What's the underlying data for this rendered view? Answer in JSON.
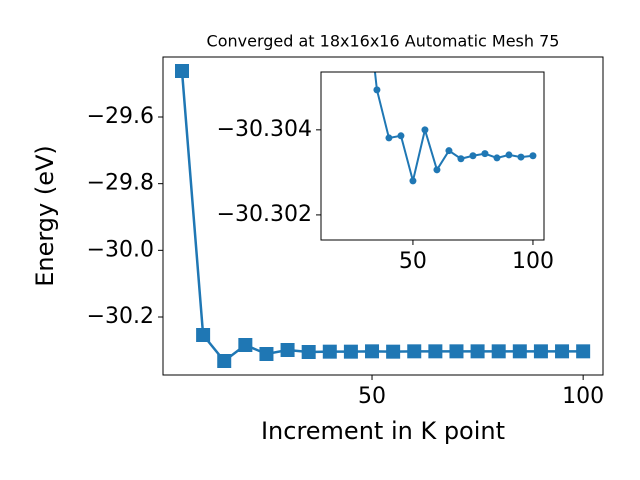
{
  "chart_data": [
    {
      "type": "line",
      "title": "Converged at 18x16x16 Automatic Mesh 75",
      "x_label": "Increment in K point",
      "y_label": "Energy (eV)",
      "x": [
        5,
        10,
        15,
        20,
        25,
        30,
        35,
        40,
        45,
        50,
        55,
        60,
        65,
        70,
        75,
        80,
        85,
        90,
        95,
        100
      ],
      "values": [
        -29.462,
        -30.254,
        -30.332,
        -30.284,
        -30.311,
        -30.299,
        -30.305,
        -30.304,
        -30.304,
        -30.303,
        -30.304,
        -30.303,
        -30.303,
        -30.303,
        -30.303,
        -30.303,
        -30.303,
        -30.303,
        -30.303,
        -30.303
      ],
      "color": "#1f77b4",
      "marker": "square",
      "xlim": [
        0.5,
        104.7
      ],
      "ylim": [
        -30.374,
        -29.42
      ],
      "xticks": [
        50,
        100
      ],
      "yticks": [
        {
          "value": -30.2,
          "label": "−30.2"
        },
        {
          "value": -30.0,
          "label": "−30.0"
        },
        {
          "value": -29.8,
          "label": "−29.8"
        },
        {
          "value": -29.6,
          "label": "−29.6"
        }
      ]
    },
    {
      "type": "line",
      "x": [
        30,
        35,
        40,
        45,
        50,
        55,
        60,
        65,
        70,
        75,
        80,
        85,
        90,
        95,
        100
      ],
      "values": [
        -30.3075,
        -30.30494,
        -30.30381,
        -30.30386,
        -30.3028,
        -30.304,
        -30.30306,
        -30.30351,
        -30.30332,
        -30.30339,
        -30.30344,
        -30.30334,
        -30.30341,
        -30.30336,
        -30.30339
      ],
      "color": "#1f77b4",
      "marker": "circle",
      "xlim": [
        11.7,
        104.6
      ],
      "ylim": [
        -30.30141,
        -30.30536
      ],
      "xticks": [
        50,
        100
      ],
      "yticks": [
        {
          "value": -30.302,
          "label": "−30.302"
        },
        {
          "value": -30.304,
          "label": "−30.304"
        }
      ]
    }
  ]
}
